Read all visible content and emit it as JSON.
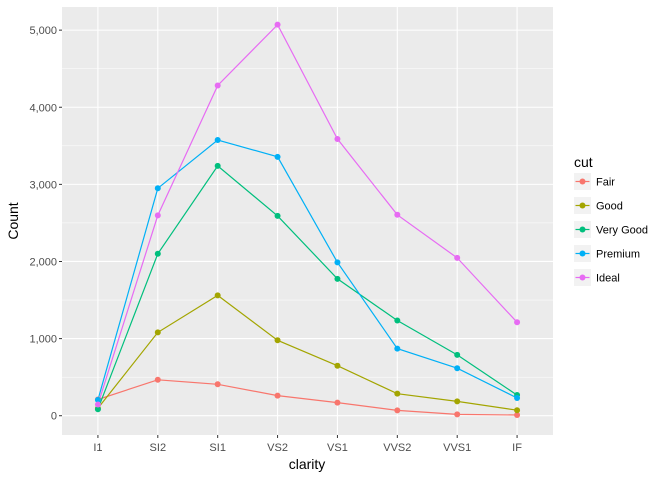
{
  "chart_data": {
    "type": "line",
    "title": "",
    "xlabel": "clarity",
    "ylabel": "Count",
    "categories": [
      "I1",
      "SI2",
      "SI1",
      "VS2",
      "VS1",
      "VVS2",
      "VVS1",
      "IF"
    ],
    "ylim": [
      -250,
      5300
    ],
    "yticks": [
      0,
      1000,
      2000,
      3000,
      4000,
      5000
    ],
    "ytick_labels": [
      "0",
      "1,000",
      "2,000",
      "3,000",
      "4,000",
      "5,000"
    ],
    "grid": true,
    "panel_background": "#EBEBEB",
    "legend": {
      "title": "cut",
      "position": "right"
    },
    "series": [
      {
        "name": "Fair",
        "color": "#F8766D",
        "values": [
          210,
          466,
          408,
          261,
          170,
          69,
          17,
          9
        ]
      },
      {
        "name": "Good",
        "color": "#A3A500",
        "values": [
          96,
          1081,
          1560,
          978,
          648,
          286,
          186,
          71
        ]
      },
      {
        "name": "Very Good",
        "color": "#00BF7D",
        "values": [
          84,
          2100,
          3240,
          2591,
          1775,
          1235,
          789,
          268
        ]
      },
      {
        "name": "Premium",
        "color": "#00B0F6",
        "values": [
          205,
          2949,
          3575,
          3357,
          1989,
          870,
          616,
          230
        ]
      },
      {
        "name": "Ideal",
        "color": "#E76BF3",
        "values": [
          146,
          2598,
          4282,
          5071,
          3589,
          2606,
          2047,
          1212
        ]
      }
    ]
  }
}
